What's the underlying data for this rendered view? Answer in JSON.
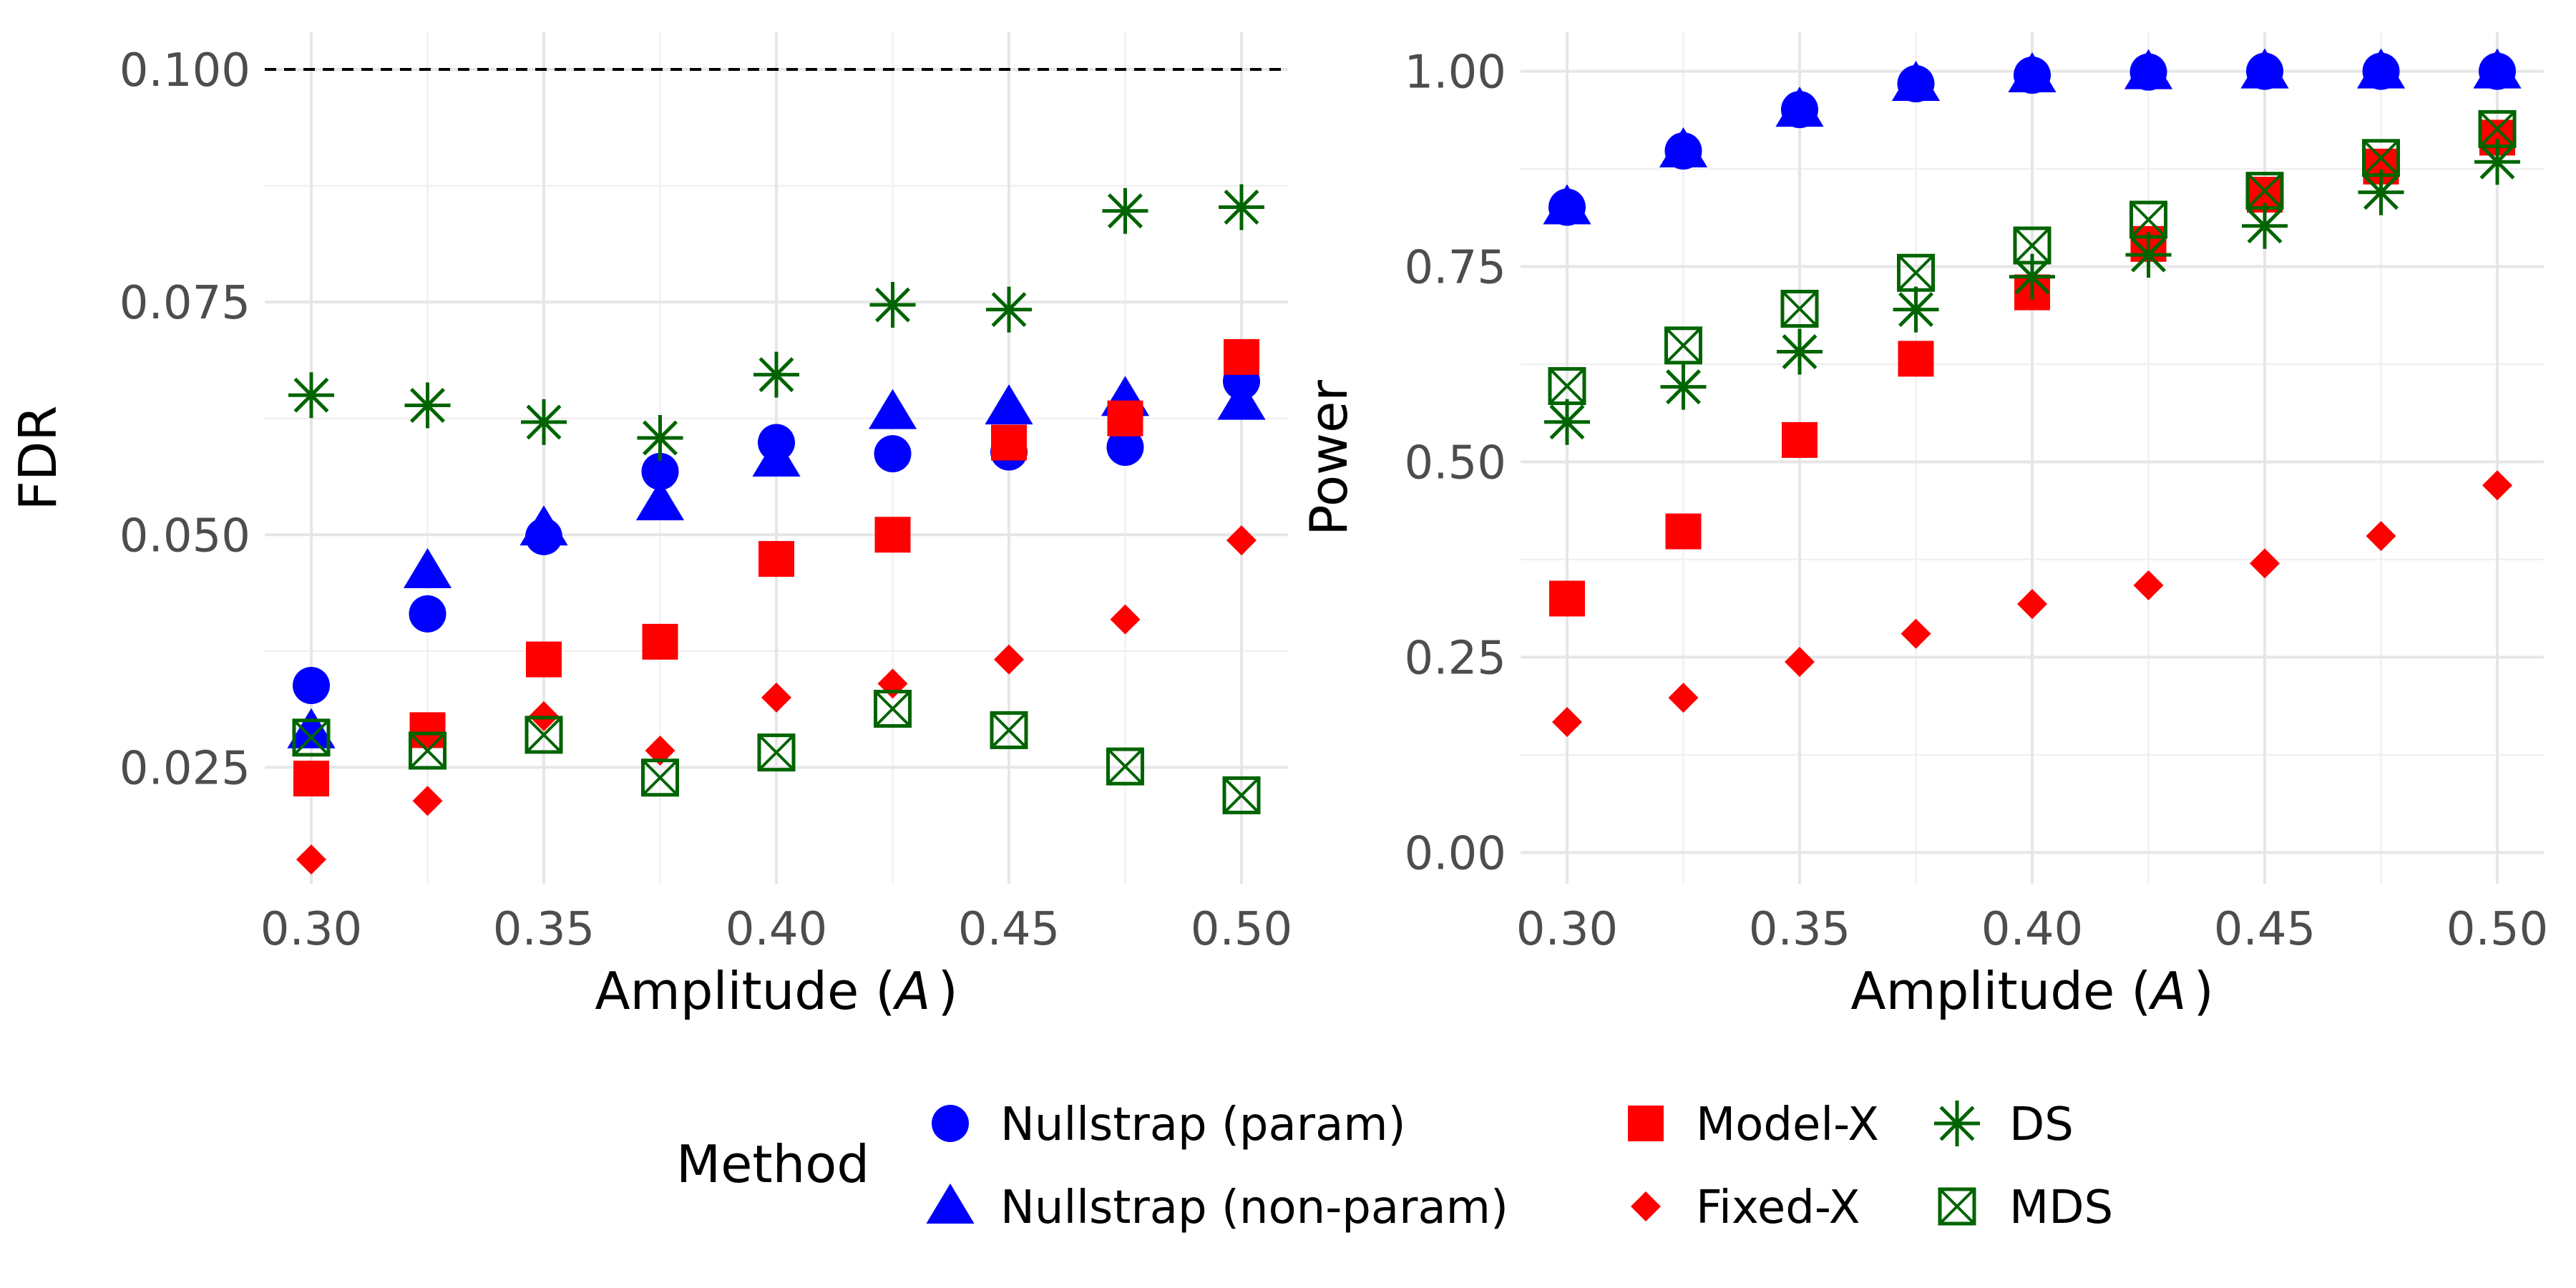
{
  "chart_data": [
    {
      "type": "scatter",
      "panel": "left",
      "xlabel_text": "Amplitude (",
      "xlabel_var": "A",
      "xlabel_close": ")",
      "ylabel": "FDR",
      "xlim": [
        0.29,
        0.51
      ],
      "ylim": [
        0.0125,
        0.104
      ],
      "xticks": [
        0.3,
        0.35,
        0.4,
        0.45,
        0.5
      ],
      "xtick_labels": [
        "0.30",
        "0.35",
        "0.40",
        "0.45",
        "0.50"
      ],
      "xminor": [
        0.325,
        0.375,
        0.425,
        0.475
      ],
      "yticks": [
        0.025,
        0.05,
        0.075,
        0.1
      ],
      "ytick_labels": [
        "0.025",
        "0.050",
        "0.075",
        "0.100"
      ],
      "yminor": [
        0.0375,
        0.0625,
        0.0875
      ],
      "reference_line": {
        "y": 0.1,
        "style": "dashed",
        "color": "#000000"
      },
      "x": [
        0.3,
        0.325,
        0.35,
        0.375,
        0.4,
        0.425,
        0.45,
        0.475,
        0.5
      ],
      "series": [
        {
          "name": "Nullstrap (param)",
          "shape": "circle",
          "color": "#0000ff",
          "values": [
            0.0338,
            0.0415,
            0.0498,
            0.0568,
            0.0599,
            0.0587,
            0.0589,
            0.0594,
            0.0665
          ]
        },
        {
          "name": "Nullstrap (non-param)",
          "shape": "triangle",
          "color": "#0000ff",
          "values": [
            0.0289,
            0.0461,
            0.0507,
            0.0534,
            0.0581,
            0.0632,
            0.0637,
            0.0646,
            0.0642
          ]
        },
        {
          "name": "Model-X",
          "shape": "square",
          "color": "#ff0000",
          "values": [
            0.0238,
            0.029,
            0.0366,
            0.0385,
            0.0474,
            0.05,
            0.0599,
            0.0625,
            0.0691
          ]
        },
        {
          "name": "Fixed-X",
          "shape": "diamond",
          "color": "#ff0000",
          "values": [
            0.0151,
            0.0214,
            0.0305,
            0.0268,
            0.0325,
            0.034,
            0.0366,
            0.0409,
            0.0494
          ]
        },
        {
          "name": "DS",
          "shape": "asterisk",
          "color": "#006400",
          "values": [
            0.065,
            0.0639,
            0.0621,
            0.0604,
            0.0672,
            0.0747,
            0.0742,
            0.0848,
            0.0852
          ]
        },
        {
          "name": "MDS",
          "shape": "square-x",
          "color": "#006400",
          "values": [
            0.0282,
            0.0268,
            0.0285,
            0.0239,
            0.0266,
            0.0313,
            0.029,
            0.0251,
            0.022
          ]
        }
      ]
    },
    {
      "type": "scatter",
      "panel": "right",
      "xlabel_text": "Amplitude (",
      "xlabel_var": "A",
      "xlabel_close": ")",
      "ylabel": "Power",
      "xlim": [
        0.29,
        0.51
      ],
      "ylim": [
        -0.04,
        1.05
      ],
      "xticks": [
        0.3,
        0.35,
        0.4,
        0.45,
        0.5
      ],
      "xtick_labels": [
        "0.30",
        "0.35",
        "0.40",
        "0.45",
        "0.50"
      ],
      "xminor": [
        0.325,
        0.375,
        0.425,
        0.475
      ],
      "yticks": [
        0,
        0.25,
        0.5,
        0.75,
        1.0
      ],
      "ytick_labels": [
        "0.00",
        "0.25",
        "0.50",
        "0.75",
        "1.00"
      ],
      "yminor": [
        0.125,
        0.375,
        0.625,
        0.875
      ],
      "x": [
        0.3,
        0.325,
        0.35,
        0.375,
        0.4,
        0.425,
        0.45,
        0.475,
        0.5
      ],
      "series": [
        {
          "name": "Nullstrap (param)",
          "shape": "circle",
          "color": "#0000ff",
          "values": [
            0.826,
            0.898,
            0.951,
            0.984,
            0.995,
            0.999,
            1.0,
            1.0,
            1.0
          ]
        },
        {
          "name": "Nullstrap (non-param)",
          "shape": "triangle",
          "color": "#0000ff",
          "values": [
            0.826,
            0.899,
            0.951,
            0.984,
            0.995,
            0.999,
            1.0,
            1.0,
            1.0
          ]
        },
        {
          "name": "Model-X",
          "shape": "square",
          "color": "#ff0000",
          "values": [
            0.325,
            0.411,
            0.528,
            0.632,
            0.717,
            0.779,
            0.842,
            0.878,
            0.915
          ]
        },
        {
          "name": "Fixed-X",
          "shape": "diamond",
          "color": "#ff0000",
          "values": [
            0.167,
            0.198,
            0.244,
            0.28,
            0.318,
            0.342,
            0.37,
            0.405,
            0.47
          ]
        },
        {
          "name": "DS",
          "shape": "asterisk",
          "color": "#006400",
          "values": [
            0.551,
            0.596,
            0.641,
            0.695,
            0.737,
            0.765,
            0.802,
            0.845,
            0.884
          ]
        },
        {
          "name": "MDS",
          "shape": "square-x",
          "color": "#006400",
          "values": [
            0.597,
            0.649,
            0.696,
            0.742,
            0.777,
            0.81,
            0.847,
            0.889,
            0.926
          ]
        }
      ]
    }
  ],
  "legend": {
    "title": "Method",
    "items": [
      {
        "label": "Nullstrap (param)",
        "shape": "circle",
        "color": "#0000ff"
      },
      {
        "label": "Nullstrap (non-param)",
        "shape": "triangle",
        "color": "#0000ff"
      },
      {
        "label": "Model-X",
        "shape": "square",
        "color": "#ff0000"
      },
      {
        "label": "Fixed-X",
        "shape": "diamond",
        "color": "#ff0000"
      },
      {
        "label": "DS",
        "shape": "asterisk",
        "color": "#006400"
      },
      {
        "label": "MDS",
        "shape": "square-x",
        "color": "#006400"
      }
    ]
  }
}
